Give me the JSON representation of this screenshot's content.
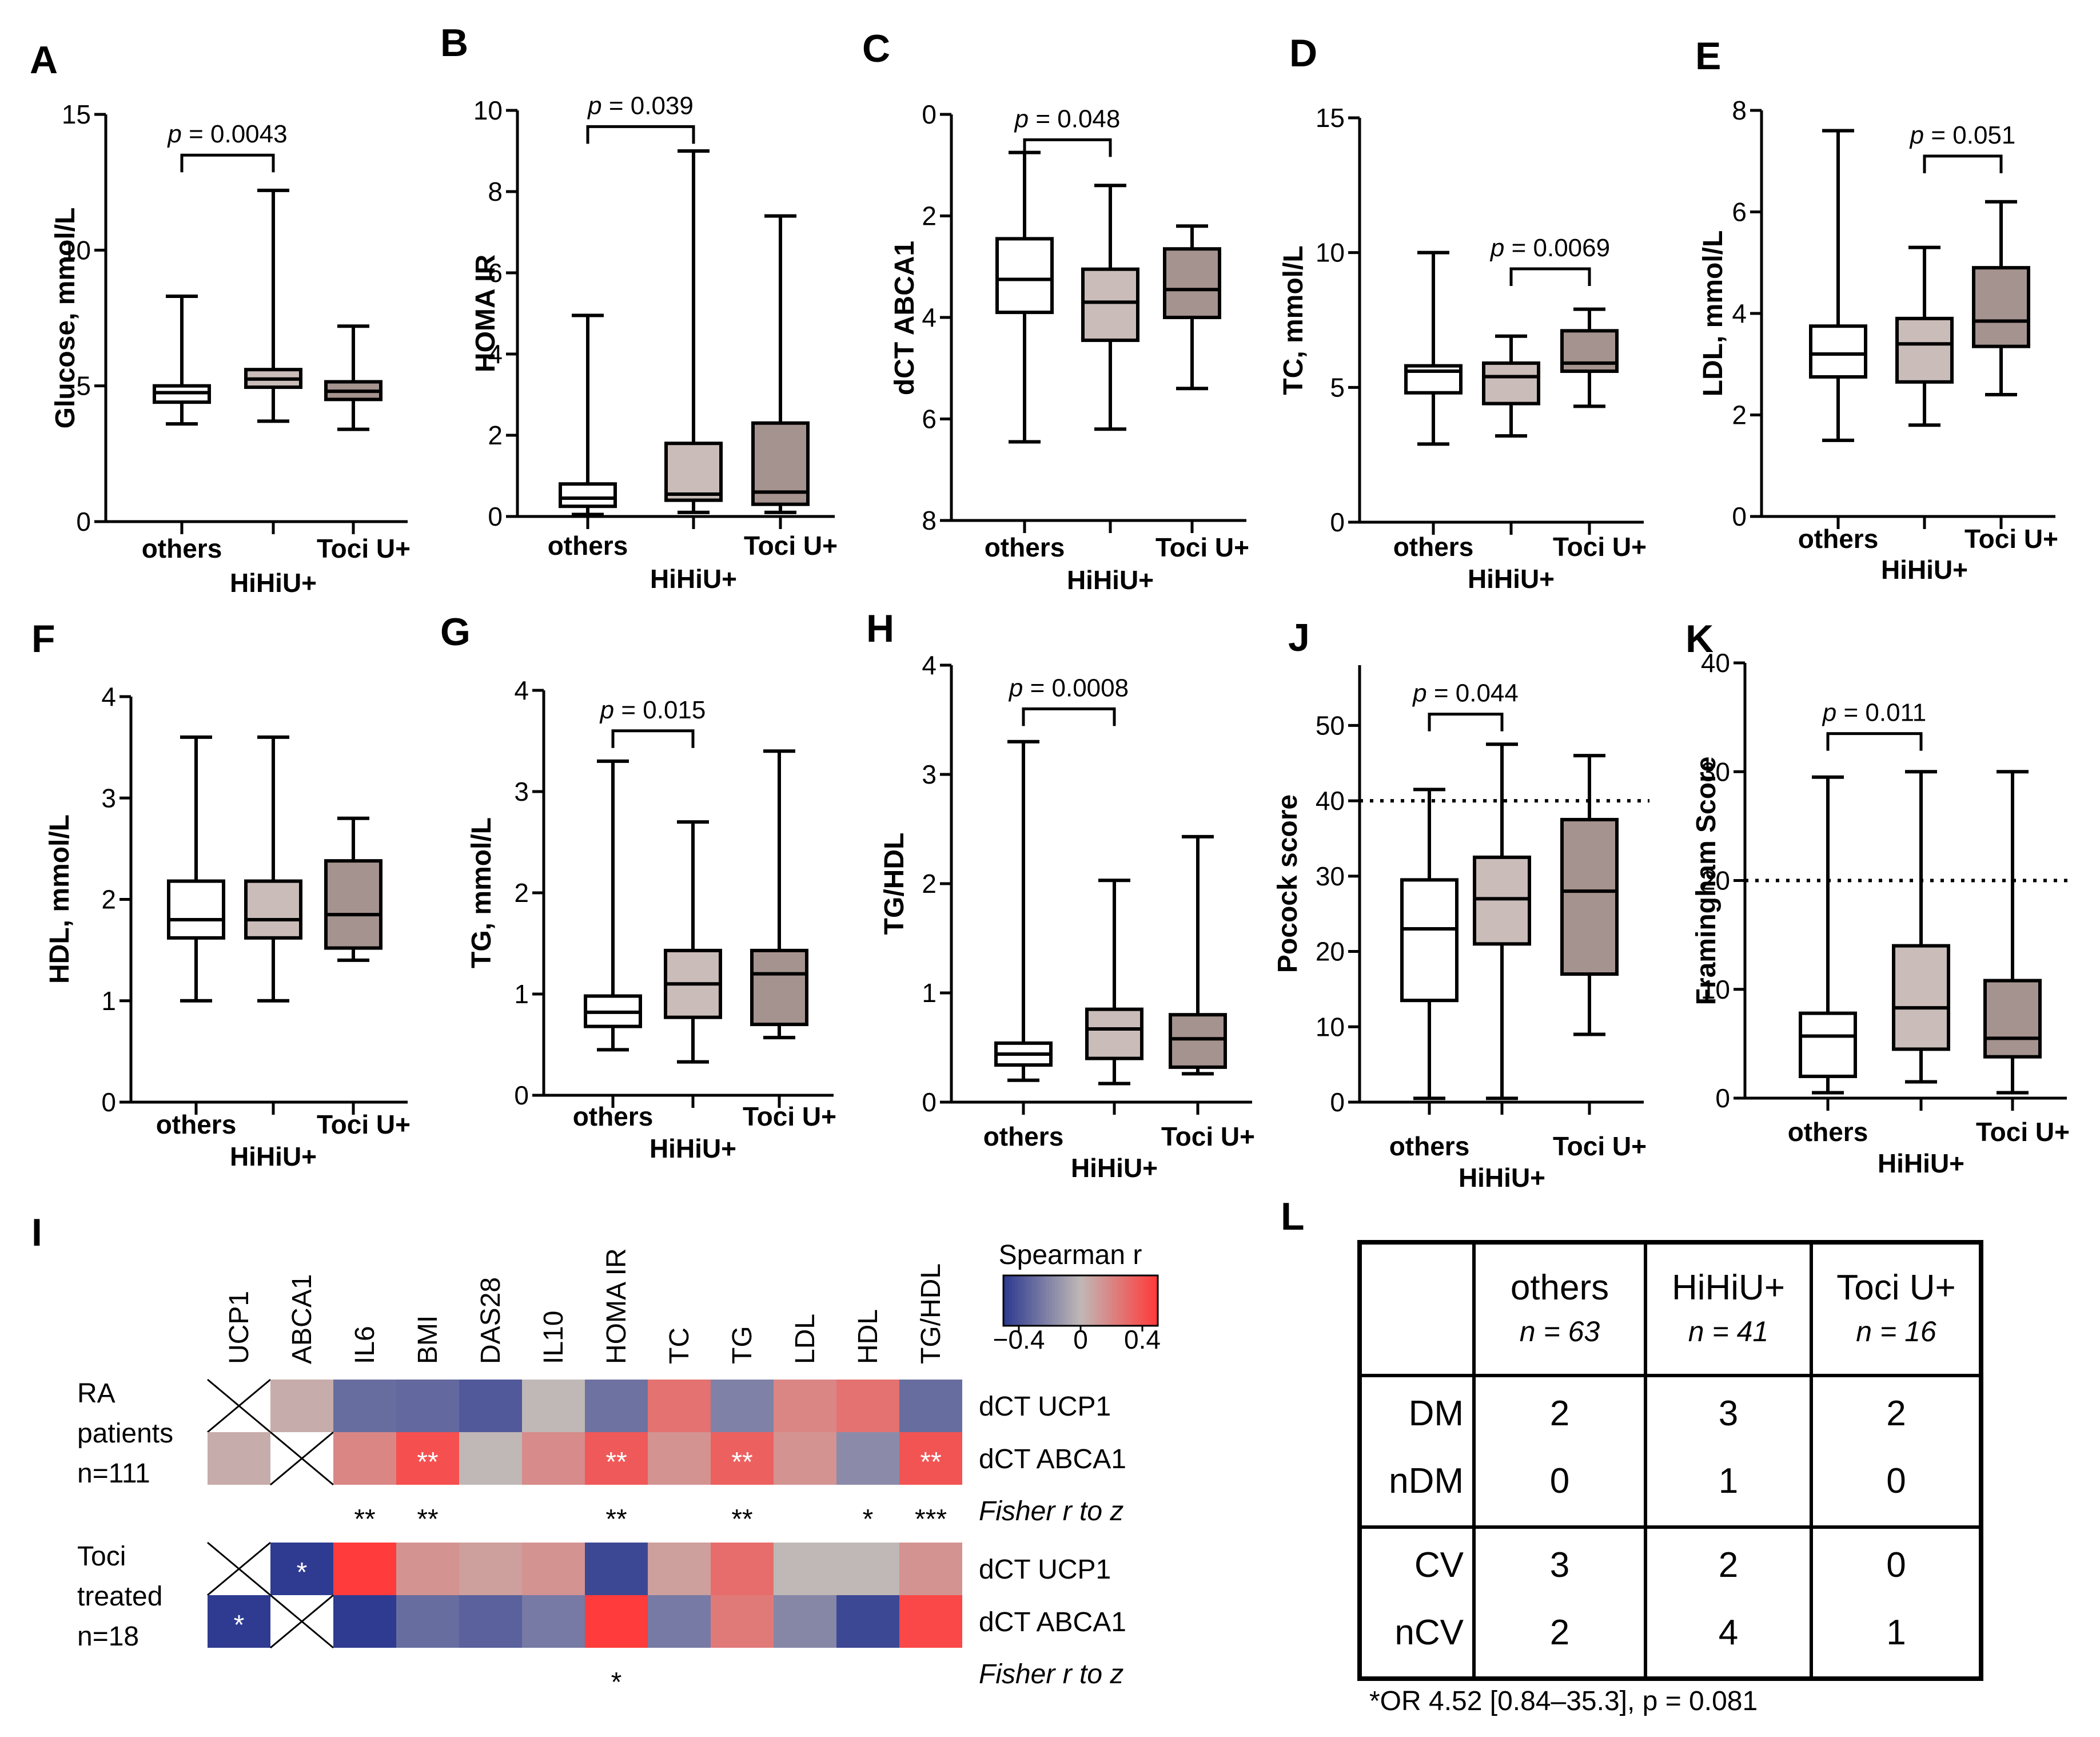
{
  "colors": {
    "others": "#ffffff",
    "hihiu": "#c9bcb9",
    "toci": "#a5938f",
    "hm_low": "#2e3b91",
    "hm_mid": "#c0b8b6",
    "hm_high": "#ff3b3b"
  },
  "chart_data": [
    {
      "type": "box",
      "panel": "A",
      "ylabel": "Glucose, mmol/L",
      "ylim": [
        0,
        15
      ],
      "yticks": [
        "0",
        "5",
        "10",
        "15"
      ],
      "reverse": false,
      "categories": [
        "others",
        "HiHiU+",
        "Toci U+"
      ],
      "boxes": [
        {
          "min": 3.6,
          "q1": 4.4,
          "median": 4.75,
          "q3": 5.0,
          "max": 8.3
        },
        {
          "min": 3.7,
          "q1": 4.95,
          "median": 5.25,
          "q3": 5.6,
          "max": 12.2
        },
        {
          "min": 3.4,
          "q1": 4.5,
          "median": 4.8,
          "q3": 5.15,
          "max": 7.2
        }
      ],
      "brackets": [
        {
          "from": 0,
          "to": 1,
          "y": 13.5,
          "label": "p = 0.0043"
        }
      ]
    },
    {
      "type": "box",
      "panel": "B",
      "ylabel": "HOMA IR",
      "ylim": [
        0,
        10
      ],
      "yticks": [
        "0",
        "2",
        "4",
        "6",
        "8",
        "10"
      ],
      "reverse": false,
      "categories": [
        "others",
        "HiHiU+",
        "Toci U+"
      ],
      "boxes": [
        {
          "min": 0.05,
          "q1": 0.25,
          "median": 0.45,
          "q3": 0.8,
          "max": 4.95
        },
        {
          "min": 0.1,
          "q1": 0.4,
          "median": 0.55,
          "q3": 1.8,
          "max": 9.0
        },
        {
          "min": 0.1,
          "q1": 0.3,
          "median": 0.6,
          "q3": 2.3,
          "max": 7.4
        }
      ],
      "brackets": [
        {
          "from": 0,
          "to": 1,
          "y": 9.6,
          "label": "p = 0.039"
        }
      ]
    },
    {
      "type": "box",
      "panel": "C",
      "ylabel": "dCT ABCA1",
      "ylim": [
        0,
        8
      ],
      "yticks": [
        "0",
        "2",
        "4",
        "6",
        "8"
      ],
      "reverse": true,
      "categories": [
        "others",
        "HiHiU+",
        "Toci U+"
      ],
      "boxes": [
        {
          "min": 0.75,
          "q1": 2.45,
          "median": 3.25,
          "q3": 3.9,
          "max": 6.45
        },
        {
          "min": 1.4,
          "q1": 3.05,
          "median": 3.7,
          "q3": 4.45,
          "max": 6.2
        },
        {
          "min": 2.2,
          "q1": 2.65,
          "median": 3.45,
          "q3": 4.0,
          "max": 5.4
        }
      ],
      "brackets": [
        {
          "from": 0,
          "to": 1,
          "y": 0.5,
          "label": "p = 0.048"
        }
      ]
    },
    {
      "type": "box",
      "panel": "D",
      "ylabel": "TC, mmol/L",
      "ylim": [
        0,
        15
      ],
      "yticks": [
        "0",
        "5",
        "10",
        "15"
      ],
      "reverse": false,
      "categories": [
        "others",
        "HiHiU+",
        "Toci U+"
      ],
      "boxes": [
        {
          "min": 2.9,
          "q1": 4.8,
          "median": 5.6,
          "q3": 5.8,
          "max": 10.0
        },
        {
          "min": 3.2,
          "q1": 4.4,
          "median": 5.4,
          "q3": 5.9,
          "max": 6.9
        },
        {
          "min": 4.3,
          "q1": 5.6,
          "median": 5.9,
          "q3": 7.1,
          "max": 7.9
        }
      ],
      "brackets": [
        {
          "from": 1,
          "to": 2,
          "y": 9.4,
          "label": "p = 0.0069"
        }
      ]
    },
    {
      "type": "box",
      "panel": "E",
      "ylabel": "LDL, mmol/L",
      "ylim": [
        0,
        8
      ],
      "yticks": [
        "0",
        "2",
        "4",
        "6",
        "8"
      ],
      "reverse": false,
      "categories": [
        "others",
        "HiHiU+",
        "Toci U+"
      ],
      "boxes": [
        {
          "min": 1.5,
          "q1": 2.75,
          "median": 3.2,
          "q3": 3.75,
          "max": 7.6
        },
        {
          "min": 1.8,
          "q1": 2.65,
          "median": 3.4,
          "q3": 3.9,
          "max": 5.3
        },
        {
          "min": 2.4,
          "q1": 3.35,
          "median": 3.85,
          "q3": 4.9,
          "max": 6.2
        }
      ],
      "brackets": [
        {
          "from": 1,
          "to": 2,
          "y": 7.1,
          "label": "p = 0.051"
        }
      ]
    },
    {
      "type": "box",
      "panel": "F",
      "ylabel": "HDL, mmol/L",
      "ylim": [
        0,
        4
      ],
      "yticks": [
        "0",
        "1",
        "2",
        "3",
        "4"
      ],
      "reverse": false,
      "categories": [
        "others",
        "HiHiU+",
        "Toci U+"
      ],
      "boxes": [
        {
          "min": 1.0,
          "q1": 1.62,
          "median": 1.8,
          "q3": 2.18,
          "max": 3.6
        },
        {
          "min": 1.0,
          "q1": 1.62,
          "median": 1.8,
          "q3": 2.18,
          "max": 3.6
        },
        {
          "min": 1.4,
          "q1": 1.52,
          "median": 1.85,
          "q3": 2.38,
          "max": 2.8
        }
      ],
      "brackets": []
    },
    {
      "type": "box",
      "panel": "G",
      "ylabel": "TG, mmol/L",
      "ylim": [
        0,
        4
      ],
      "yticks": [
        "0",
        "1",
        "2",
        "3",
        "4"
      ],
      "reverse": false,
      "categories": [
        "others",
        "HiHiU+",
        "Toci U+"
      ],
      "boxes": [
        {
          "min": 0.45,
          "q1": 0.68,
          "median": 0.82,
          "q3": 0.98,
          "max": 3.3
        },
        {
          "min": 0.33,
          "q1": 0.77,
          "median": 1.1,
          "q3": 1.43,
          "max": 2.7
        },
        {
          "min": 0.57,
          "q1": 0.7,
          "median": 1.2,
          "q3": 1.43,
          "max": 3.4
        }
      ],
      "brackets": [
        {
          "from": 0,
          "to": 1,
          "y": 3.6,
          "label": "p = 0.015"
        }
      ]
    },
    {
      "type": "box",
      "panel": "H",
      "ylabel": "TG/HDL",
      "ylim": [
        0,
        4
      ],
      "yticks": [
        "0",
        "1",
        "2",
        "3",
        "4"
      ],
      "reverse": false,
      "categories": [
        "others",
        "HiHiU+",
        "Toci U+"
      ],
      "boxes": [
        {
          "min": 0.2,
          "q1": 0.34,
          "median": 0.44,
          "q3": 0.54,
          "max": 3.3
        },
        {
          "min": 0.17,
          "q1": 0.4,
          "median": 0.67,
          "q3": 0.85,
          "max": 2.03
        },
        {
          "min": 0.26,
          "q1": 0.32,
          "median": 0.58,
          "q3": 0.8,
          "max": 2.43
        }
      ],
      "brackets": [
        {
          "from": 0,
          "to": 1,
          "y": 3.6,
          "label": "p = 0.0008"
        }
      ]
    },
    {
      "type": "box",
      "panel": "J",
      "ylabel": "Pocock score",
      "ylim": [
        0,
        50
      ],
      "ymax": 58,
      "yticks": [
        "0",
        "10",
        "20",
        "30",
        "40",
        "50"
      ],
      "reverse": false,
      "categories": [
        "others",
        "HiHiU+",
        "Toci U+"
      ],
      "boxes": [
        {
          "min": 0.5,
          "q1": 13.5,
          "median": 23.0,
          "q3": 29.5,
          "max": 41.5
        },
        {
          "min": 0.5,
          "q1": 21.0,
          "median": 27.0,
          "q3": 32.5,
          "max": 47.5
        },
        {
          "min": 9.0,
          "q1": 17.0,
          "median": 28.0,
          "q3": 37.5,
          "max": 46.0
        }
      ],
      "reference_line": 40,
      "brackets": [
        {
          "from": 0,
          "to": 1,
          "y": 51.5,
          "label": "p = 0.044"
        }
      ]
    },
    {
      "type": "box",
      "panel": "K",
      "ylabel": "Framingham Score",
      "ylim": [
        0,
        40
      ],
      "yticks": [
        "0",
        "10",
        "20",
        "30",
        "40"
      ],
      "reverse": false,
      "categories": [
        "others",
        "HiHiU+",
        "Toci U+"
      ],
      "boxes": [
        {
          "min": 0.5,
          "q1": 2.0,
          "median": 5.7,
          "q3": 7.8,
          "max": 29.5
        },
        {
          "min": 1.5,
          "q1": 4.5,
          "median": 8.3,
          "q3": 14.0,
          "max": 30.0
        },
        {
          "min": 0.5,
          "q1": 3.8,
          "median": 5.5,
          "q3": 10.8,
          "max": 30.0
        }
      ],
      "reference_line": 20,
      "brackets": [
        {
          "from": 0,
          "to": 1,
          "y": 33.5,
          "label": "p = 0.011"
        }
      ]
    },
    {
      "type": "heatmap",
      "panel": "I",
      "legend_title": "Spearman r",
      "legend_ticks": [
        "-0.4",
        "0",
        "0.4"
      ],
      "columns": [
        "UCP1",
        "ABCA1",
        "IL6",
        "BMI",
        "DAS28",
        "IL10",
        "HOMA IR",
        "TC",
        "TG",
        "LDL",
        "HDL",
        "TG/HDL"
      ],
      "groups": [
        {
          "label_lines": [
            "RA",
            "patients",
            "n=111"
          ],
          "rows": [
            {
              "label": "dCT UCP1",
              "values": [
                null,
                0.05,
                -0.3,
                -0.32,
                -0.38,
                0.0,
                -0.28,
                0.28,
                -0.22,
                0.2,
                0.28,
                -0.3
              ],
              "stars": [
                "",
                "",
                "",
                "",
                "",
                "",
                "",
                "",
                "",
                "",
                "",
                ""
              ]
            },
            {
              "label": "dCT ABCA1",
              "values": [
                0.05,
                null,
                0.2,
                0.42,
                0.0,
                0.18,
                0.38,
                0.15,
                0.35,
                0.15,
                -0.18,
                0.4
              ],
              "stars": [
                "",
                "",
                "",
                "**",
                "",
                "",
                "**",
                "",
                "**",
                "",
                "",
                "**"
              ]
            }
          ],
          "fisher_label": "Fisher r to z",
          "fisher_stars": [
            "",
            "",
            "**",
            "**",
            "",
            "",
            "**",
            "",
            "**",
            "",
            "*",
            "***"
          ]
        },
        {
          "label_lines": [
            "Toci",
            "treated",
            "n=18"
          ],
          "rows": [
            {
              "label": "dCT UCP1",
              "values": [
                null,
                -0.6,
                0.5,
                0.15,
                0.1,
                0.15,
                -0.45,
                0.1,
                0.3,
                0.0,
                0.0,
                0.15
              ],
              "stars": [
                "",
                "*",
                "",
                "",
                "",
                "",
                "",
                "",
                "",
                "",
                "",
                ""
              ]
            },
            {
              "label": "dCT ABCA1",
              "values": [
                -0.65,
                null,
                -0.5,
                -0.3,
                -0.35,
                -0.25,
                0.55,
                -0.25,
                0.25,
                -0.2,
                -0.45,
                0.45
              ],
              "stars": [
                "*",
                "",
                "",
                "",
                "",
                "",
                "",
                "",
                "",
                "",
                "",
                ""
              ]
            }
          ],
          "fisher_label": "Fisher r to z",
          "fisher_stars": [
            "",
            "",
            "",
            "",
            "",
            "",
            "*",
            "",
            "",
            "",
            "",
            ""
          ]
        }
      ]
    },
    {
      "type": "table",
      "panel": "L",
      "columns": [
        {
          "name": "others",
          "n": "n = 63"
        },
        {
          "name": "HiHiU+",
          "n": "n = 41"
        },
        {
          "name": "Toci U+",
          "n": "n = 16"
        }
      ],
      "rows": [
        {
          "label": "DM",
          "values": [
            "2",
            "3",
            "2"
          ]
        },
        {
          "label": "nDM",
          "values": [
            "0",
            "1",
            "0"
          ]
        },
        {
          "label": "CV",
          "values": [
            "3",
            "2",
            "0"
          ]
        },
        {
          "label": "nCV",
          "values": [
            "2",
            "4",
            "1"
          ]
        }
      ],
      "footnote": "*OR 4.52 [0.84–35.3], p = 0.081"
    }
  ]
}
